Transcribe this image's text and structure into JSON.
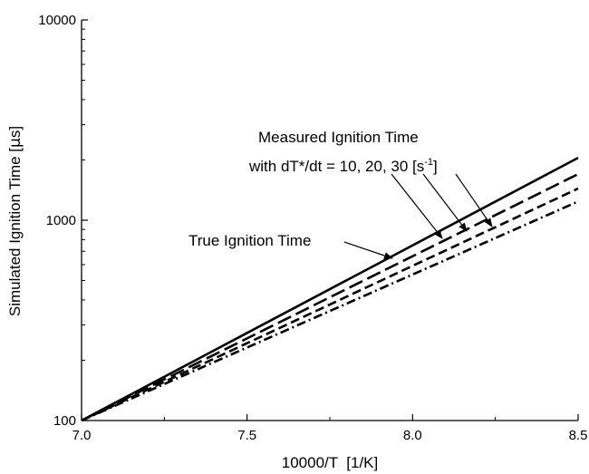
{
  "chart_data": {
    "type": "line",
    "xlabel": "10000/T  [1/K]",
    "ylabel_pre": "Simulated Ignition Time [",
    "ylabel_mu": "μ",
    "ylabel_post": "s]",
    "xlim": [
      7.0,
      8.5
    ],
    "ylim": [
      100,
      10000
    ],
    "yscale": "log",
    "x_ticks": [
      "7.0",
      "7.5",
      "8.0",
      "8.5"
    ],
    "y_ticks": [
      "100",
      "1000",
      "10000"
    ],
    "grid": false,
    "series": [
      {
        "x": [
          7.0,
          8.5
        ],
        "y": [
          100,
          2050
        ],
        "style": "solid"
      },
      {
        "x": [
          7.0,
          8.5
        ],
        "y": [
          100,
          1700
        ],
        "style": "long-dash"
      },
      {
        "x": [
          7.0,
          8.5
        ],
        "y": [
          100,
          1440
        ],
        "style": "dash"
      },
      {
        "x": [
          7.0,
          8.5
        ],
        "y": [
          100,
          1240
        ],
        "style": "dash-dot"
      }
    ],
    "annotations": {
      "measured_line1": "Measured Ignition Time",
      "measured_line2_pre": "with dT*/dt = 10, 20, 30 [s",
      "measured_line2_sup": "-1",
      "measured_line2_post": "]",
      "true_label": "True Ignition Time"
    }
  }
}
